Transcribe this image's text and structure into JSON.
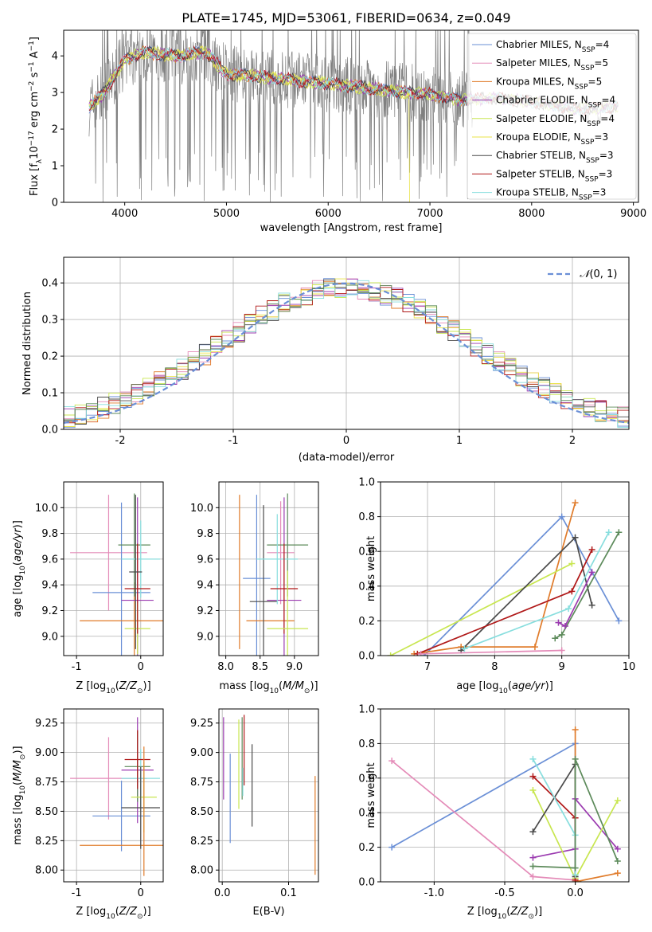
{
  "title": "PLATE=1745, MJD=53061, FIBERID=0634, z=0.049",
  "colors": {
    "chabrier_miles": "#6a8fd6",
    "salpeter_miles": "#e48bb8",
    "kroupa_miles": "#e07b2a",
    "chabrier_elodie": "#9b3bb0",
    "salpeter_elodie": "#c8e650",
    "kroupa_elodie": "#e9e34a",
    "chabrier_stelib": "#4a4a4a",
    "salpeter_stelib": "#b01818",
    "kroupa_stelib": "#88dede",
    "extra_green": "#5c8a5a",
    "data_grey": "#808080"
  },
  "chart_data": [
    {
      "type": "line",
      "name": "spectrum",
      "xlabel": "wavelength [Angstrom, rest frame]",
      "ylabel": "Flux [fλ10⁻¹⁷ erg cm⁻² s⁻¹ A⁻¹]",
      "xlim": [
        3400,
        9050
      ],
      "ylim": [
        0,
        4.7
      ],
      "xticks": [
        4000,
        5000,
        6000,
        7000,
        8000,
        9000
      ],
      "yticks": [
        0,
        1,
        2,
        3,
        4
      ],
      "legend": [
        "Chabrier MILES, N_SSP=4",
        "Salpeter MILES, N_SSP=5",
        "Kroupa MILES, N_SSP=5",
        "Chabrier ELODIE, N_SSP=4",
        "Salpeter ELODIE, N_SSP=4",
        "Kroupa ELODIE, N_SSP=3",
        "Chabrier STELIB, N_SSP=3",
        "Salpeter STELIB, N_SSP=3",
        "Kroupa STELIB, N_SSP=3"
      ],
      "legend_labels": [
        {
          "pre": "Chabrier MILES, N",
          "sub": "SSP",
          "post": "=4"
        },
        {
          "pre": "Salpeter MILES, N",
          "sub": "SSP",
          "post": "=5"
        },
        {
          "pre": "Kroupa MILES, N",
          "sub": "SSP",
          "post": "=5"
        },
        {
          "pre": "Chabrier ELODIE, N",
          "sub": "SSP",
          "post": "=4"
        },
        {
          "pre": "Salpeter ELODIE, N",
          "sub": "SSP",
          "post": "=4"
        },
        {
          "pre": "Kroupa ELODIE, N",
          "sub": "SSP",
          "post": "=3"
        },
        {
          "pre": "Chabrier STELIB, N",
          "sub": "SSP",
          "post": "=3"
        },
        {
          "pre": "Salpeter STELIB, N",
          "sub": "SSP",
          "post": "=3"
        },
        {
          "pre": "Kroupa STELIB, N",
          "sub": "SSP",
          "post": "=3"
        }
      ],
      "legend_placement": "top-right",
      "continuum": {
        "x": [
          3650,
          3800,
          4000,
          4200,
          4500,
          4800,
          5000,
          5300,
          5600,
          6000,
          6300,
          6600,
          7000,
          7300,
          7600,
          8000,
          8400,
          8800
        ],
        "y": [
          2.6,
          3.0,
          3.9,
          4.1,
          4.0,
          4.1,
          3.5,
          3.45,
          3.35,
          3.25,
          3.15,
          3.05,
          2.95,
          2.8,
          2.85,
          2.75,
          2.55,
          2.6
        ]
      }
    },
    {
      "type": "histogram",
      "name": "residuals",
      "xlabel": "(data-model)/error",
      "ylabel": "Normed distribution",
      "xlim": [
        -2.5,
        2.5
      ],
      "ylim": [
        0,
        0.47
      ],
      "xticks": [
        -2,
        -1,
        0,
        1,
        2
      ],
      "yticks": [
        0.0,
        0.1,
        0.2,
        0.3,
        0.4
      ],
      "bin_width": 0.1,
      "legend": [
        "N(0,1)"
      ],
      "legend_placement": "top-right"
    },
    {
      "type": "errorbar",
      "name": "age-vs-Z",
      "xlabel": "Z [log10(Z/Z⊙)]",
      "ylabel": "age  [log10(age/yr)]",
      "xlim": [
        -1.2,
        0.35
      ],
      "ylim": [
        8.85,
        10.2
      ],
      "xticks": [
        -1,
        0
      ],
      "yticks": [
        9.0,
        9.2,
        9.4,
        9.6,
        9.8,
        10.0
      ],
      "points": [
        {
          "x": -0.5,
          "xerr": 0.6,
          "y": 9.65,
          "yerr": 0.45,
          "color": "salpeter_miles"
        },
        {
          "x": -0.3,
          "xerr": 0.45,
          "y": 9.34,
          "yerr": 0.7,
          "color": "chabrier_miles"
        },
        {
          "x": -0.1,
          "xerr": 0.85,
          "y": 9.12,
          "yerr": 0.3,
          "color": "kroupa_miles"
        },
        {
          "x": -0.05,
          "xerr": 0.25,
          "y": 9.28,
          "yerr": 0.8,
          "color": "chabrier_elodie"
        },
        {
          "x": -0.05,
          "xerr": 0.2,
          "y": 9.06,
          "yerr": 0.2,
          "color": "salpeter_elodie"
        },
        {
          "x": -0.1,
          "xerr": 0.25,
          "y": 9.71,
          "yerr": 0.4,
          "color": "extra_green"
        },
        {
          "x": 0.0,
          "xerr": 0.3,
          "y": 9.6,
          "yerr": 0.3,
          "color": "kroupa_stelib"
        },
        {
          "x": -0.05,
          "xerr": 0.2,
          "y": 9.37,
          "yerr": 0.35,
          "color": "salpeter_stelib"
        },
        {
          "x": -0.08,
          "xerr": 0.1,
          "y": 9.5,
          "yerr": 0.6,
          "color": "chabrier_stelib"
        }
      ]
    },
    {
      "type": "errorbar",
      "name": "age-vs-mass",
      "xlabel": "mass [log10(M/M⊙)]",
      "xlim": [
        7.9,
        9.35
      ],
      "ylim": [
        8.85,
        10.2
      ],
      "xticks": [
        8.0,
        8.5,
        9.0
      ],
      "yticks": [
        9.0,
        9.2,
        9.4,
        9.6,
        9.8,
        10.0
      ],
      "points": [
        {
          "x": 8.2,
          "xerr": 0.0,
          "y": 9.5,
          "yerr": 0.6,
          "color": "kroupa_miles"
        },
        {
          "x": 8.45,
          "xerr": 0.2,
          "y": 9.45,
          "yerr": 0.65,
          "color": "chabrier_miles"
        },
        {
          "x": 8.8,
          "xerr": 0.2,
          "y": 9.65,
          "yerr": 0.4,
          "color": "salpeter_miles"
        },
        {
          "x": 8.65,
          "xerr": 0.35,
          "y": 9.12,
          "yerr": 0.0,
          "color": "kroupa_miles"
        },
        {
          "x": 8.55,
          "xerr": 0.2,
          "y": 9.27,
          "yerr": 0.75,
          "color": "chabrier_stelib"
        },
        {
          "x": 8.85,
          "xerr": 0.25,
          "y": 9.28,
          "yerr": 0.8,
          "color": "chabrier_elodie"
        },
        {
          "x": 8.9,
          "xerr": 0.3,
          "y": 9.71,
          "yerr": 0.4,
          "color": "extra_green"
        },
        {
          "x": 8.75,
          "xerr": 0.3,
          "y": 9.6,
          "yerr": 0.35,
          "color": "kroupa_stelib"
        },
        {
          "x": 8.85,
          "xerr": 0.2,
          "y": 9.37,
          "yerr": 0.35,
          "color": "salpeter_stelib"
        },
        {
          "x": 8.9,
          "xerr": 0.3,
          "y": 9.06,
          "yerr": 0.45,
          "color": "salpeter_elodie"
        }
      ]
    },
    {
      "type": "line",
      "name": "weight-vs-age",
      "xlabel": "age  [log10(age/yr)]",
      "ylabel": "mass weight",
      "xlim": [
        6.3,
        10.0
      ],
      "ylim": [
        0,
        1.0
      ],
      "xticks": [
        7,
        8,
        9,
        10
      ],
      "yticks": [
        0.0,
        0.2,
        0.4,
        0.6,
        0.8,
        1.0
      ],
      "series": [
        {
          "color": "chabrier_miles",
          "x": [
            6.95,
            9.0,
            9.85
          ],
          "y": [
            0.0,
            0.8,
            0.2
          ]
        },
        {
          "color": "kroupa_miles",
          "x": [
            6.8,
            7.5,
            8.6,
            9.2
          ],
          "y": [
            0.01,
            0.05,
            0.05,
            0.88
          ]
        },
        {
          "color": "salpeter_elodie",
          "x": [
            6.45,
            9.15
          ],
          "y": [
            0.0,
            0.53
          ]
        },
        {
          "color": "chabrier_stelib",
          "x": [
            7.5,
            9.2,
            9.45
          ],
          "y": [
            0.03,
            0.68,
            0.29
          ]
        },
        {
          "color": "salpeter_stelib",
          "x": [
            6.85,
            9.15,
            9.45
          ],
          "y": [
            0.01,
            0.37,
            0.61
          ]
        },
        {
          "color": "kroupa_stelib",
          "x": [
            7.55,
            9.1,
            9.7
          ],
          "y": [
            0.04,
            0.27,
            0.71
          ]
        },
        {
          "color": "extra_green",
          "x": [
            8.9,
            9.0,
            9.85
          ],
          "y": [
            0.1,
            0.12,
            0.71
          ]
        },
        {
          "color": "chabrier_elodie",
          "x": [
            8.95,
            9.05,
            9.45
          ],
          "y": [
            0.19,
            0.17,
            0.48
          ]
        },
        {
          "color": "salpeter_miles",
          "x": [
            6.9,
            9.0
          ],
          "y": [
            0.01,
            0.03
          ]
        }
      ]
    },
    {
      "type": "errorbar",
      "name": "mass-vs-Z",
      "xlabel": "Z [log10(Z/Z⊙)]",
      "ylabel": "mass [log10(M/M⊙)]",
      "xlim": [
        -1.2,
        0.35
      ],
      "ylim": [
        7.9,
        9.37
      ],
      "xticks": [
        -1,
        0
      ],
      "yticks": [
        8.0,
        8.25,
        8.5,
        8.75,
        9.0,
        9.25
      ],
      "points": [
        {
          "x": -0.5,
          "xerr": 0.6,
          "y": 8.78,
          "yerr": 0.35,
          "color": "salpeter_miles"
        },
        {
          "x": -0.3,
          "xerr": 0.45,
          "y": 8.46,
          "yerr": 0.3,
          "color": "chabrier_miles"
        },
        {
          "x": -0.1,
          "xerr": 0.85,
          "y": 8.21,
          "yerr": 0.0,
          "color": "kroupa_miles"
        },
        {
          "x": -0.05,
          "xerr": 0.25,
          "y": 8.85,
          "yerr": 0.45,
          "color": "chabrier_elodie"
        },
        {
          "x": -0.05,
          "xerr": 0.2,
          "y": 8.88,
          "yerr": 0.3,
          "color": "extra_green"
        },
        {
          "x": 0.0,
          "xerr": 0.3,
          "y": 8.78,
          "yerr": 0.25,
          "color": "kroupa_stelib"
        },
        {
          "x": -0.05,
          "xerr": 0.2,
          "y": 8.94,
          "yerr": 0.25,
          "color": "salpeter_stelib"
        },
        {
          "x": 0.05,
          "xerr": 0.2,
          "y": 8.62,
          "yerr": 0.3,
          "color": "salpeter_elodie"
        },
        {
          "x": 0.0,
          "xerr": 0.3,
          "y": 8.53,
          "yerr": 0.35,
          "color": "chabrier_stelib"
        },
        {
          "x": 0.05,
          "xerr": 0.0,
          "y": 8.5,
          "yerr": 0.55,
          "color": "kroupa_miles"
        }
      ]
    },
    {
      "type": "errorbar",
      "name": "mass-vs-ebv",
      "xlabel": "E(B-V)",
      "xlim": [
        -0.005,
        0.145
      ],
      "ylim": [
        7.9,
        9.37
      ],
      "xticks": [
        0.0,
        0.1
      ],
      "yticks": [
        8.0,
        8.25,
        8.5,
        8.75,
        9.0,
        9.25
      ],
      "points": [
        {
          "x": 0.002,
          "xerr": 0.0,
          "y": 8.95,
          "yerr": 0.35,
          "color": "chabrier_elodie"
        },
        {
          "x": 0.012,
          "xerr": 0.0,
          "y": 8.61,
          "yerr": 0.38,
          "color": "chabrier_miles"
        },
        {
          "x": 0.025,
          "xerr": 0.0,
          "y": 8.9,
          "yerr": 0.38,
          "color": "salpeter_elodie"
        },
        {
          "x": 0.03,
          "xerr": 0.0,
          "y": 8.95,
          "yerr": 0.35,
          "color": "extra_green"
        },
        {
          "x": 0.033,
          "xerr": 0.0,
          "y": 9.02,
          "yerr": 0.3,
          "color": "salpeter_stelib"
        },
        {
          "x": 0.031,
          "xerr": 0.0,
          "y": 8.75,
          "yerr": 0.12,
          "color": "kroupa_stelib"
        },
        {
          "x": 0.045,
          "xerr": 0.0,
          "y": 8.72,
          "yerr": 0.35,
          "color": "chabrier_stelib"
        },
        {
          "x": 0.14,
          "xerr": 0.0,
          "y": 8.38,
          "yerr": 0.42,
          "color": "kroupa_miles"
        }
      ]
    },
    {
      "type": "line",
      "name": "weight-vs-Z",
      "xlabel": "Z [log10(Z/Z⊙)]",
      "ylabel": "mass weight",
      "xlim": [
        -1.38,
        0.38
      ],
      "ylim": [
        0,
        1.0
      ],
      "xticks": [
        -1.0,
        -0.5,
        0.0
      ],
      "yticks": [
        0.0,
        0.2,
        0.4,
        0.6,
        0.8,
        1.0
      ],
      "series": [
        {
          "color": "chabrier_miles",
          "x": [
            -1.3,
            0.0,
            0.0
          ],
          "y": [
            0.2,
            0.8,
            0.0
          ]
        },
        {
          "color": "salpeter_miles",
          "x": [
            -1.3,
            -0.3,
            0.0
          ],
          "y": [
            0.7,
            0.03,
            0.01
          ]
        },
        {
          "color": "kroupa_miles",
          "x": [
            0.0,
            0.0,
            0.3
          ],
          "y": [
            0.88,
            0.0,
            0.05
          ]
        },
        {
          "color": "chabrier_elodie",
          "x": [
            -0.3,
            0.0,
            0.0,
            0.3
          ],
          "y": [
            0.14,
            0.19,
            0.48,
            0.19
          ]
        },
        {
          "color": "salpeter_elodie",
          "x": [
            -0.3,
            0.0,
            0.3
          ],
          "y": [
            0.53,
            0.02,
            0.47
          ]
        },
        {
          "color": "chabrier_stelib",
          "x": [
            -0.3,
            0.0,
            0.0
          ],
          "y": [
            0.29,
            0.68,
            0.03
          ]
        },
        {
          "color": "salpeter_stelib",
          "x": [
            -0.3,
            0.0,
            0.0
          ],
          "y": [
            0.61,
            0.37,
            0.01
          ]
        },
        {
          "color": "kroupa_stelib",
          "x": [
            -0.3,
            0.0,
            0.0
          ],
          "y": [
            0.71,
            0.27,
            0.04
          ]
        },
        {
          "color": "extra_green",
          "x": [
            -0.3,
            0.0,
            0.0,
            0.3
          ],
          "y": [
            0.09,
            0.08,
            0.71,
            0.12
          ]
        }
      ]
    }
  ]
}
